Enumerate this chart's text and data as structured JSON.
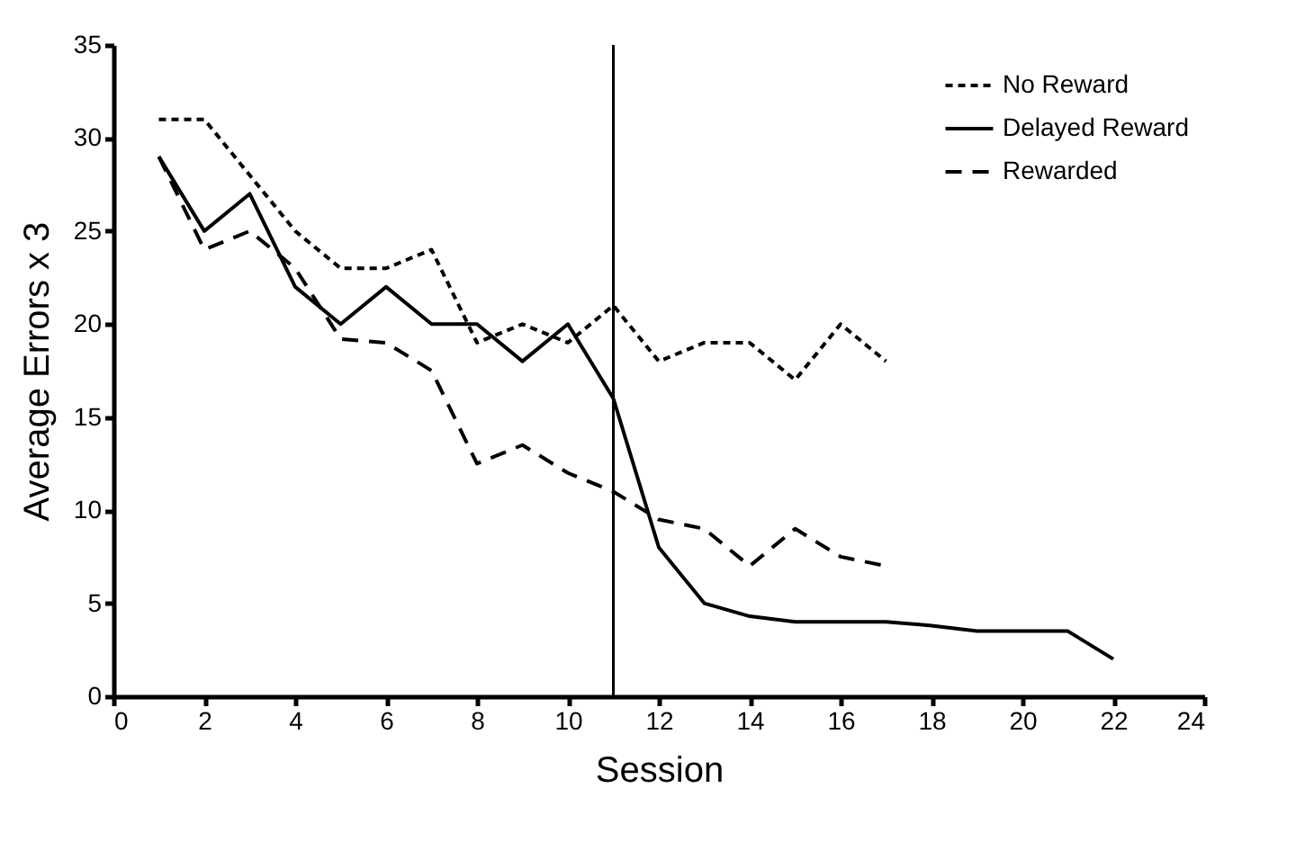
{
  "chart_data": {
    "type": "line",
    "xlabel": "Session",
    "ylabel": "Average Errors  x  3",
    "xlim": [
      0,
      24
    ],
    "xticks": [
      0,
      2,
      4,
      6,
      8,
      10,
      12,
      14,
      16,
      18,
      20,
      22,
      24
    ],
    "ylim": [
      0,
      35
    ],
    "yticks": [
      0,
      5,
      10,
      15,
      20,
      25,
      30,
      35
    ],
    "legend": "top right",
    "grid": false,
    "ref_lines": [
      {
        "axis": "x",
        "value": 11,
        "color": "#000000"
      }
    ],
    "series": [
      {
        "name": "No Reward",
        "color": "#000000",
        "line_style": "dotted",
        "x": [
          1,
          2,
          3,
          4,
          5,
          6,
          7,
          8,
          9,
          10,
          11,
          12,
          13,
          14,
          15,
          16,
          17
        ],
        "values": [
          31,
          31,
          28,
          25,
          23,
          23,
          24,
          19,
          20,
          19,
          21,
          18,
          19,
          19,
          17,
          20,
          18
        ]
      },
      {
        "name": "Delayed Reward",
        "color": "#000000",
        "line_style": "solid",
        "x": [
          1,
          2,
          3,
          4,
          5,
          6,
          7,
          8,
          9,
          10,
          11,
          12,
          13,
          14,
          15,
          16,
          17,
          18,
          19,
          20,
          21,
          22
        ],
        "values": [
          29,
          25,
          27,
          22,
          20,
          22,
          20,
          20,
          18,
          20,
          16,
          8,
          5,
          4.3,
          4,
          4,
          4,
          3.8,
          3.5,
          3.5,
          3.5,
          2
        ]
      },
      {
        "name": "Rewarded",
        "color": "#000000",
        "line_style": "dashed",
        "x": [
          1,
          2,
          3,
          4,
          5,
          6,
          7,
          8,
          9,
          10,
          11,
          12,
          13,
          14,
          15,
          16,
          17
        ],
        "values": [
          29,
          24,
          25,
          23,
          19.2,
          19,
          17.5,
          12.5,
          13.5,
          12,
          11,
          9.5,
          9,
          7,
          9,
          7.5,
          7
        ]
      }
    ]
  }
}
